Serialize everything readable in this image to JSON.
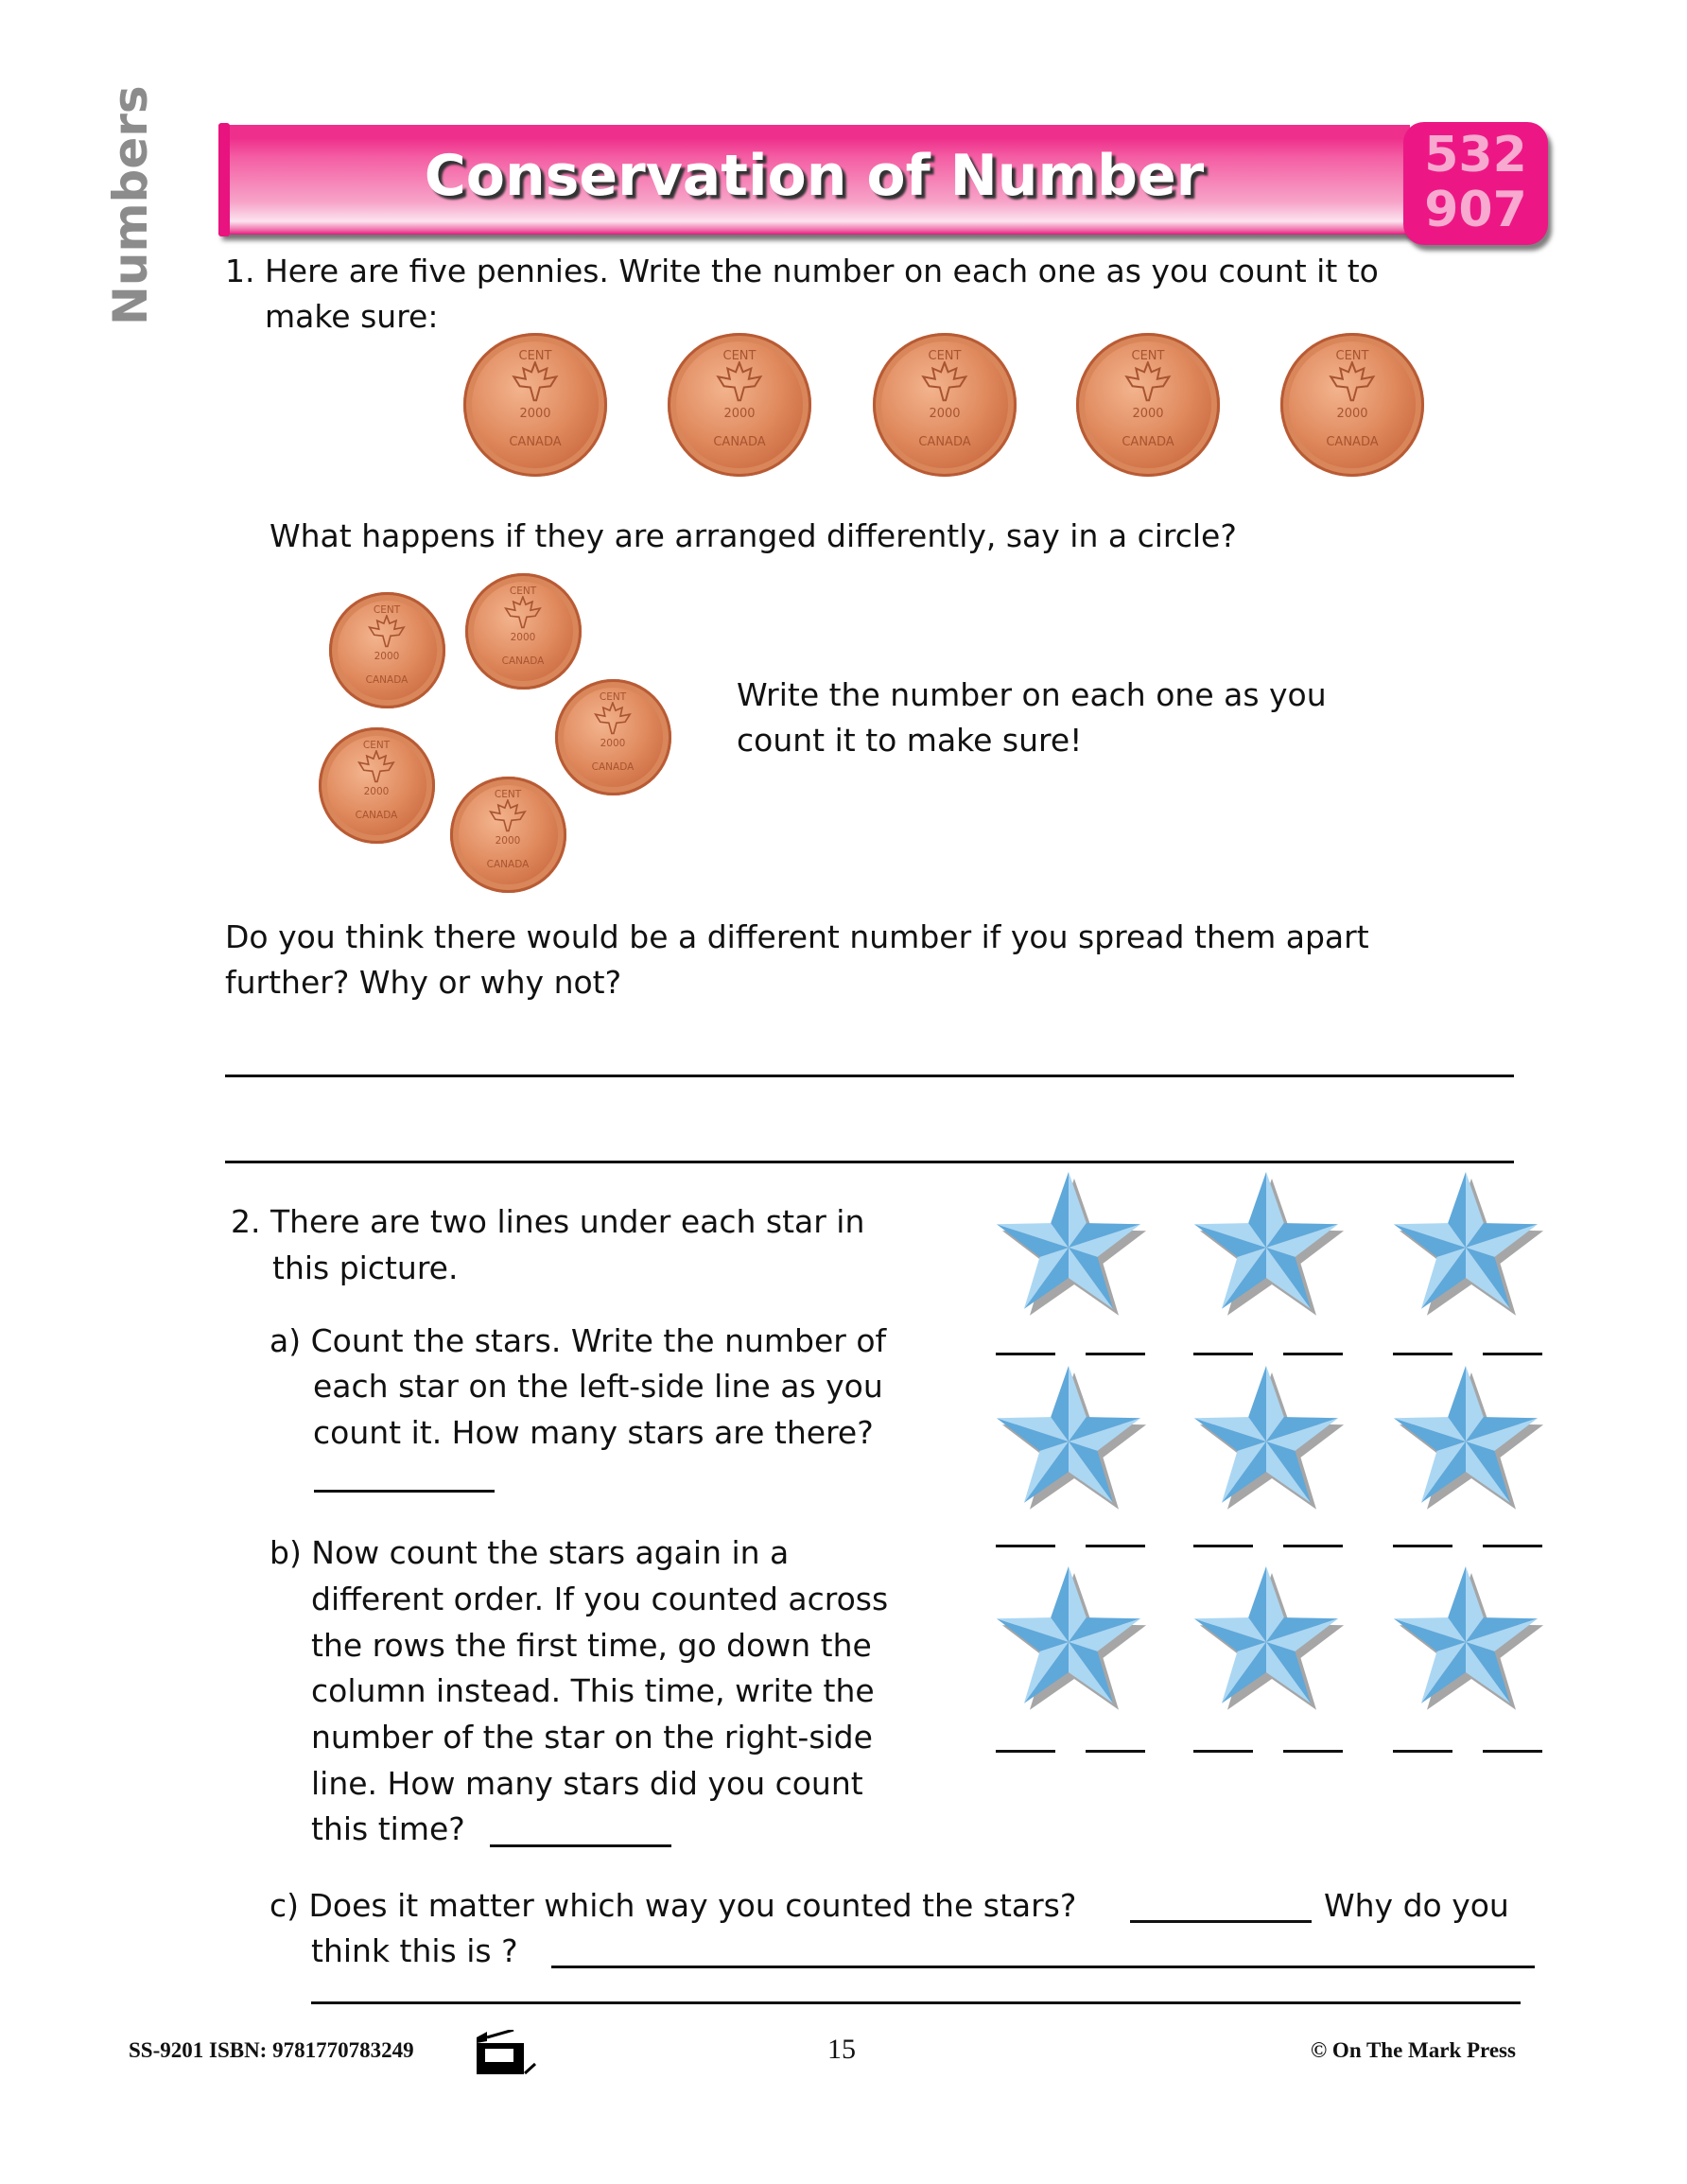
{
  "sidebar": {
    "section": "Numbers"
  },
  "header": {
    "title": "Conservation of Number",
    "badge_top": "532",
    "badge_bottom": "907"
  },
  "q1": {
    "line1": "1. Here are five pennies. Write the number on each one as you count it to",
    "line2": "make sure:",
    "penny_count_row": 5,
    "arranged_prompt": "What happens if they are arranged differently, say in a circle?",
    "circle_penny_count": 5,
    "write_line1": "Write the number on each one as you",
    "write_line2": "count it to make sure!",
    "spread_line1": "Do you think there would be a different number if you spread them apart",
    "spread_line2": "further? Why or why not?"
  },
  "penny": {
    "top_text": "CENT",
    "year": "2000",
    "country": "CANADA"
  },
  "q2": {
    "intro1": "2. There are two lines under each star in",
    "intro2": "this picture.",
    "a": [
      "a) Count the stars. Write the number of",
      "each star on the left-side line as you",
      "count it. How many stars are there?"
    ],
    "b": [
      "b) Now count the stars again in a",
      "different order. If you counted across",
      "the rows the first time, go down the",
      "column instead. This time, write the",
      "number of the star on the right-side",
      "line. How many stars did you count",
      "this time?"
    ],
    "c1": "c) Does it matter which way you counted the stars?",
    "c1_end": "Why do you",
    "c2": "think this is ?",
    "star_rows": 3,
    "star_cols": 3,
    "star_color": "#6fb6e6"
  },
  "footer": {
    "code": "SS-9201  ISBN: 9781770783249",
    "page": "15",
    "publisher": "© On The Mark Press"
  },
  "colors": {
    "accent": "#ec1785",
    "sidebar_text": "#8c8c8c"
  }
}
